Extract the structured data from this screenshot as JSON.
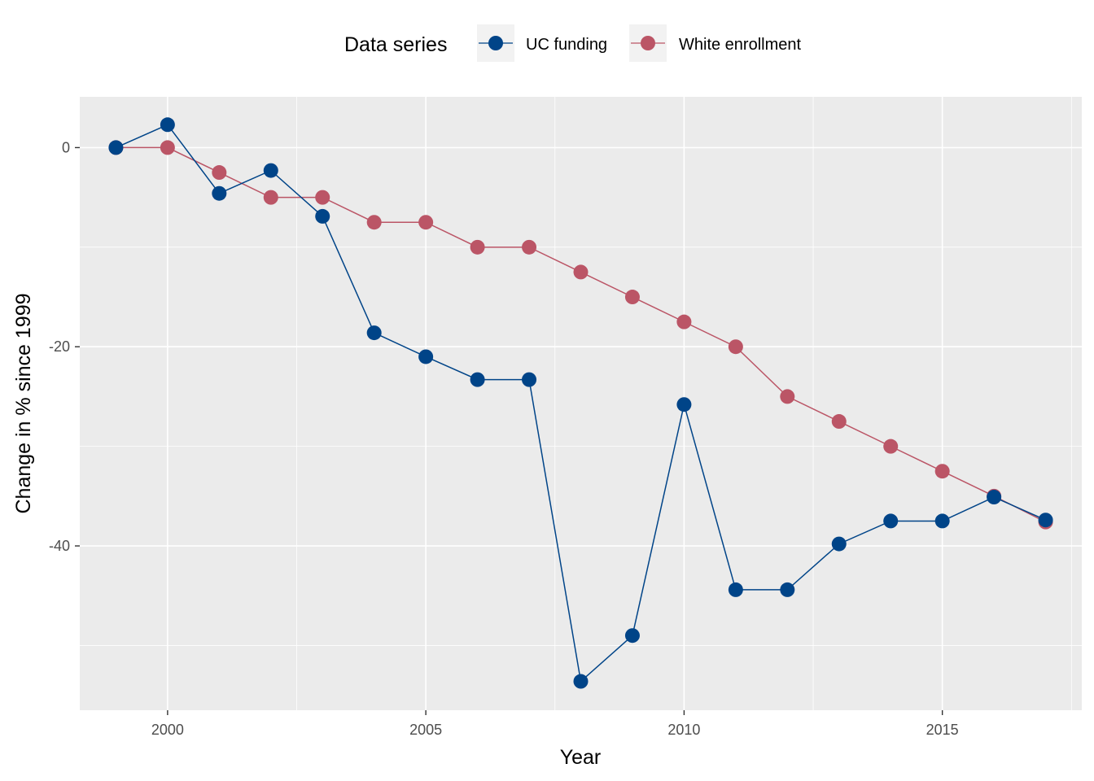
{
  "chart_data": {
    "type": "line",
    "xlabel": "Year",
    "ylabel": "Change in % since 1999",
    "legend_title": "Data series",
    "legend_position": "top",
    "grid": true,
    "xlim": [
      1998.3,
      2017.7
    ],
    "ylim": [
      -56.5,
      5.1
    ],
    "x_ticks": [
      2000,
      2005,
      2010,
      2015
    ],
    "y_ticks": [
      0,
      -20,
      -40
    ],
    "x": [
      1999,
      2000,
      2001,
      2002,
      2003,
      2004,
      2005,
      2006,
      2007,
      2008,
      2009,
      2010,
      2011,
      2012,
      2013,
      2014,
      2015,
      2016,
      2017
    ],
    "series": [
      {
        "name": "UC funding",
        "color": "#004488",
        "values": [
          0,
          2.3,
          -4.6,
          -2.3,
          -6.9,
          -18.6,
          -21,
          -23.3,
          -23.3,
          -53.6,
          -49,
          -25.8,
          -44.4,
          -44.4,
          -39.8,
          -37.5,
          -37.5,
          -35.1,
          -37.4
        ]
      },
      {
        "name": "White enrollment",
        "color": "#BB5566",
        "values": [
          0,
          0,
          -2.5,
          -5,
          -5,
          -7.5,
          -7.5,
          -10,
          -10,
          -12.5,
          -15,
          -17.5,
          -20,
          -25,
          -27.5,
          -30,
          -32.5,
          -35,
          -37.6
        ]
      }
    ]
  }
}
